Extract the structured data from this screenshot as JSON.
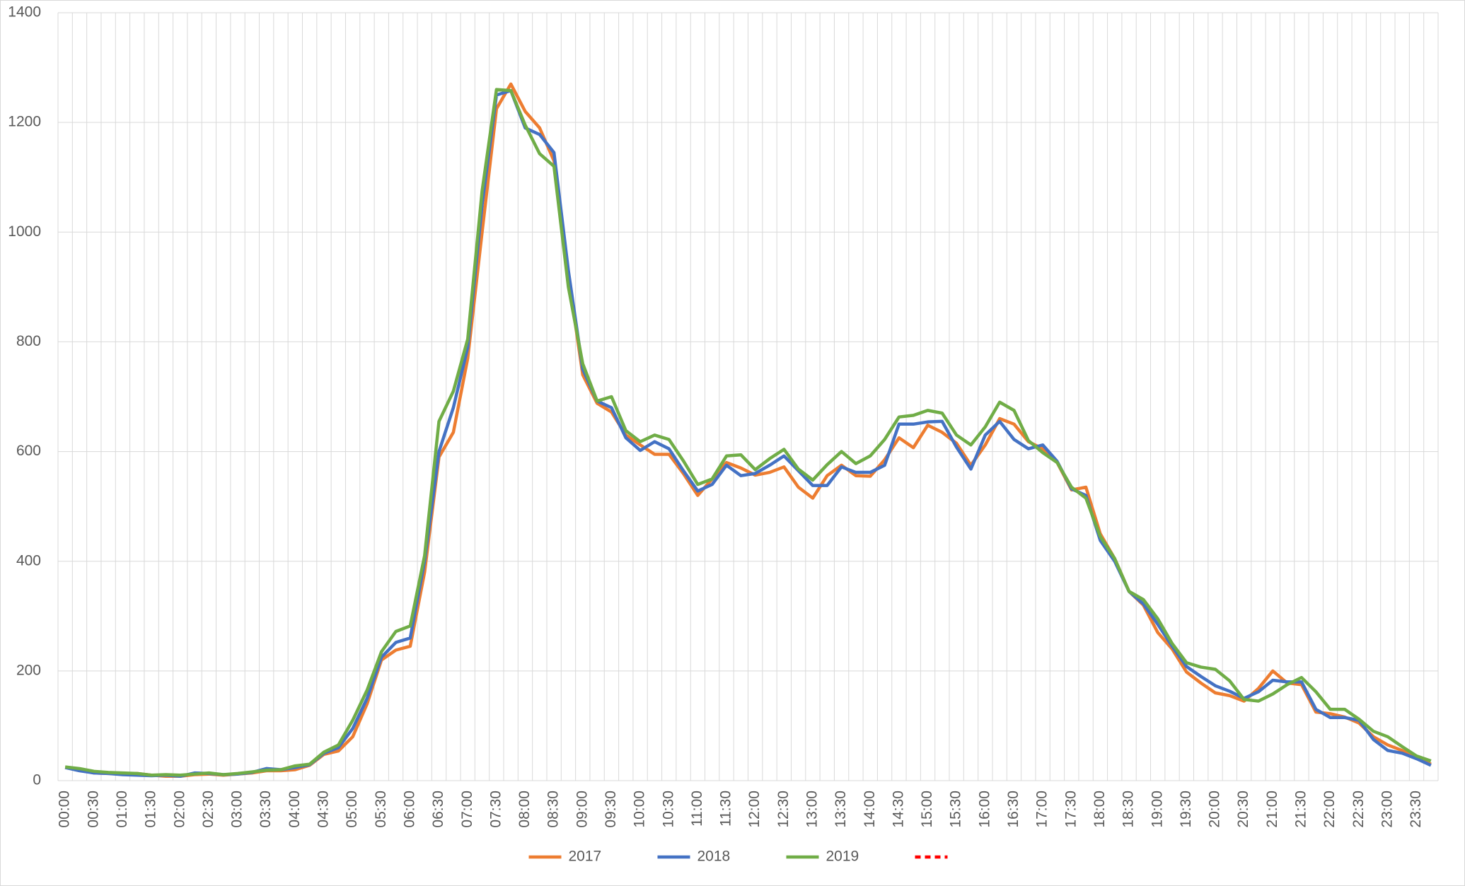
{
  "chart_data": {
    "type": "line",
    "categories": [
      "00:00",
      null,
      "00:30",
      null,
      "01:00",
      null,
      "01:30",
      null,
      "02:00",
      null,
      "02:30",
      null,
      "03:00",
      null,
      "03:30",
      null,
      "04:00",
      null,
      "04:30",
      null,
      "05:00",
      null,
      "05:30",
      null,
      "06:00",
      null,
      "06:30",
      null,
      "07:00",
      null,
      "07:30",
      null,
      "08:00",
      null,
      "08:30",
      null,
      "09:00",
      null,
      "09:30",
      null,
      "10:00",
      null,
      "10:30",
      null,
      "11:00",
      null,
      "11:30",
      null,
      "12:00",
      null,
      "12:30",
      null,
      "13:00",
      null,
      "13:30",
      null,
      "14:00",
      null,
      "14:30",
      null,
      "15:00",
      null,
      "15:30",
      null,
      "16:00",
      null,
      "16:30",
      null,
      "17:00",
      null,
      "17:30",
      null,
      "18:00",
      null,
      "18:30",
      null,
      "19:00",
      null,
      "19:30",
      null,
      "20:00",
      null,
      "20:30",
      null,
      "21:00",
      null,
      "21:30",
      null,
      "22:00",
      null,
      "22:30",
      null,
      "23:00",
      null,
      "23:30",
      null
    ],
    "series": [
      {
        "name": "2017",
        "color": "#ed7d31",
        "values": [
          24,
          20,
          14,
          13,
          13,
          13,
          10,
          8,
          8,
          11,
          12,
          10,
          12,
          14,
          18,
          18,
          20,
          28,
          48,
          54,
          80,
          140,
          220,
          238,
          245,
          380,
          590,
          635,
          770,
          1000,
          1225,
          1270,
          1220,
          1190,
          1130,
          920,
          740,
          688,
          672,
          630,
          612,
          595,
          595,
          560,
          520,
          550,
          580,
          570,
          557,
          562,
          572,
          535,
          515,
          556,
          575,
          556,
          555,
          585,
          625,
          607,
          648,
          635,
          615,
          575,
          612,
          660,
          650,
          618,
          605,
          580,
          530,
          535,
          450,
          405,
          345,
          320,
          270,
          240,
          198,
          178,
          160,
          155,
          145,
          168,
          200,
          178,
          175,
          125,
          122,
          116,
          105,
          80,
          65,
          55,
          42,
          30
        ]
      },
      {
        "name": "2018",
        "color": "#4472c4",
        "values": [
          24,
          18,
          14,
          13,
          11,
          10,
          9,
          10,
          8,
          14,
          13,
          11,
          12,
          15,
          22,
          20,
          24,
          29,
          50,
          60,
          95,
          150,
          225,
          252,
          260,
          400,
          600,
          680,
          790,
          1050,
          1250,
          1258,
          1190,
          1178,
          1145,
          930,
          750,
          692,
          680,
          625,
          602,
          618,
          605,
          565,
          528,
          540,
          575,
          556,
          560,
          575,
          592,
          565,
          538,
          538,
          572,
          562,
          562,
          575,
          650,
          650,
          654,
          655,
          608,
          568,
          630,
          655,
          622,
          605,
          612,
          582,
          532,
          520,
          438,
          400,
          345,
          322,
          285,
          245,
          208,
          190,
          173,
          163,
          150,
          162,
          183,
          180,
          180,
          130,
          115,
          115,
          110,
          75,
          55,
          50,
          40,
          28
        ]
      },
      {
        "name": "2019",
        "color": "#70ad47",
        "values": [
          25,
          22,
          17,
          15,
          14,
          13,
          10,
          11,
          10,
          12,
          14,
          11,
          13,
          16,
          19,
          20,
          27,
          30,
          52,
          65,
          110,
          165,
          235,
          272,
          282,
          410,
          655,
          710,
          805,
          1075,
          1260,
          1258,
          1195,
          1143,
          1120,
          900,
          760,
          692,
          700,
          638,
          618,
          630,
          622,
          583,
          540,
          550,
          592,
          594,
          567,
          587,
          604,
          568,
          548,
          576,
          600,
          578,
          592,
          622,
          663,
          666,
          675,
          670,
          630,
          612,
          645,
          690,
          675,
          620,
          598,
          580,
          535,
          515,
          445,
          405,
          345,
          330,
          295,
          250,
          215,
          207,
          203,
          182,
          148,
          145,
          158,
          175,
          188,
          162,
          130,
          130,
          112,
          90,
          80,
          62,
          45,
          36
        ]
      },
      {
        "color": "#ff0000",
        "dashed": true,
        "values": [
          null,
          null,
          null,
          null,
          null,
          null,
          null,
          null,
          null,
          null,
          null,
          null,
          null,
          null,
          null,
          null,
          null,
          null,
          null,
          null,
          null,
          null,
          null,
          null,
          null,
          null,
          null,
          null,
          null,
          null,
          null,
          null,
          null,
          null,
          null,
          null,
          null,
          null,
          null,
          null,
          null,
          null,
          null,
          null,
          null,
          null,
          null,
          null,
          null,
          null,
          null,
          null,
          null,
          null,
          null,
          null,
          null,
          null,
          null,
          null,
          null,
          null,
          null,
          null,
          null,
          null,
          null,
          null,
          null,
          null,
          null,
          null,
          null,
          null,
          null,
          null,
          null,
          null,
          null,
          null,
          null,
          null,
          null,
          null,
          null,
          null,
          null,
          null,
          null,
          null,
          null,
          null,
          null,
          null,
          null,
          null
        ]
      }
    ],
    "ylim": [
      0,
      1400
    ],
    "yticks": [
      0,
      200,
      400,
      600,
      800,
      1000,
      1200,
      1400
    ],
    "grid": true,
    "legend": "bottom"
  }
}
